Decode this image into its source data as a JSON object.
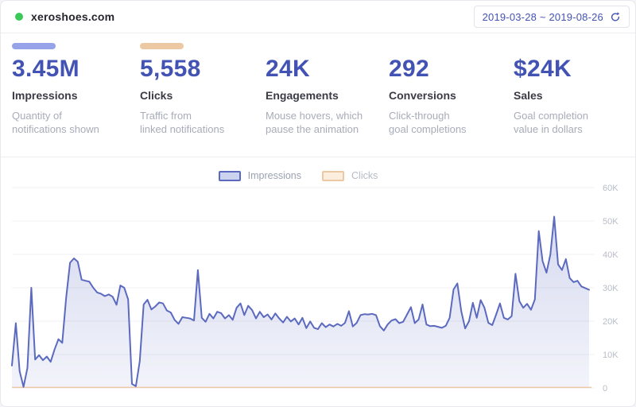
{
  "header": {
    "site": "xeroshoes.com",
    "status_color": "#3bc95a",
    "date_range": "2019-03-28 ~ 2019-08-26",
    "refresh_icon_color": "#4353b4"
  },
  "accent_color": "#4353b4",
  "stats": [
    {
      "value": "3.45M",
      "label": "Impressions",
      "desc_line1": "Quantity of",
      "desc_line2": "notifications shown",
      "pill_color": "#96a3e8"
    },
    {
      "value": "5,558",
      "label": "Clicks",
      "desc_line1": "Traffic from",
      "desc_line2": "linked notifications",
      "pill_color": "#edc9a3"
    },
    {
      "value": "24K",
      "label": "Engagements",
      "desc_line1": "Mouse hovers, which",
      "desc_line2": "pause the animation",
      "pill_color": ""
    },
    {
      "value": "292",
      "label": "Conversions",
      "desc_line1": "Click-through",
      "desc_line2": "goal completions",
      "pill_color": ""
    },
    {
      "value": "$24K",
      "label": "Sales",
      "desc_line1": "Goal completion",
      "desc_line2": "value in dollars",
      "pill_color": ""
    }
  ],
  "legend": [
    {
      "label": "Impressions",
      "fill": "#ccd3ee",
      "stroke": "#5b6abf"
    },
    {
      "label": "Clicks",
      "fill": "#fbeede",
      "stroke": "#edc9a3"
    }
  ],
  "chart_data": {
    "type": "area",
    "title": "",
    "x_start": "2019-03-28",
    "x_end": "2019-08-26",
    "x_axis": "time, daily (x tick labels not shown)",
    "ylim": [
      0,
      60000
    ],
    "y_ticks": [
      "60K",
      "50K",
      "40K",
      "30K",
      "20K",
      "10K",
      "0"
    ],
    "y_axis_side": "right",
    "grid": "horizontal",
    "legend_position": "top-center",
    "series": [
      {
        "name": "Impressions",
        "color": "#5b6abf",
        "unit": "thousands",
        "values_thousands": [
          6.7,
          19.4,
          5,
          0.3,
          6,
          30,
          8.5,
          9.8,
          8.3,
          9.4,
          7.8,
          11.5,
          14.6,
          13.5,
          27,
          37.5,
          38.8,
          37.8,
          32.4,
          32.1,
          31.8,
          30,
          28.6,
          28.2,
          27.5,
          28,
          27.3,
          24.9,
          30.7,
          30,
          26.5,
          1.2,
          0.5,
          8,
          25,
          26.4,
          23.5,
          24.4,
          25.6,
          25.3,
          23.2,
          22.6,
          20.4,
          19.2,
          21.2,
          21,
          20.8,
          20.2,
          35.3,
          21,
          19.8,
          22.2,
          20.8,
          22.8,
          22.4,
          20.8,
          21.8,
          20.4,
          24,
          25.3,
          21.8,
          24.6,
          23.3,
          20.8,
          22.8,
          21.2,
          22,
          20.5,
          22.3,
          20.8,
          19.6,
          21.3,
          19.9,
          20.8,
          19,
          21,
          17.9,
          19.9,
          18,
          17.6,
          19.4,
          18.2,
          19,
          18.4,
          19.2,
          18.6,
          19.5,
          23,
          18.4,
          19.5,
          21.8,
          22.1,
          22,
          22.2,
          21.8,
          18.5,
          17.2,
          19,
          20.2,
          20.6,
          19.4,
          19.8,
          22,
          24.2,
          19.4,
          20.5,
          25,
          19,
          18.5,
          18.6,
          18.3,
          18,
          18.6,
          21,
          29.5,
          31.3,
          23,
          17.8,
          20,
          25.5,
          21,
          26.3,
          24,
          19.5,
          18.8,
          22,
          25.3,
          21,
          20.5,
          21.5,
          34.2,
          26,
          24,
          25.2,
          23.4,
          26.5,
          47,
          38,
          34.5,
          40,
          51.3,
          37,
          35.3,
          38.6,
          32.9,
          31.7,
          32.1,
          30.4,
          29.9,
          29.4
        ]
      },
      {
        "name": "Clicks",
        "color": "#edc9a3",
        "unit": "thousands",
        "flat_near_zero": true,
        "approx_value_thousands": 0.15
      }
    ]
  }
}
